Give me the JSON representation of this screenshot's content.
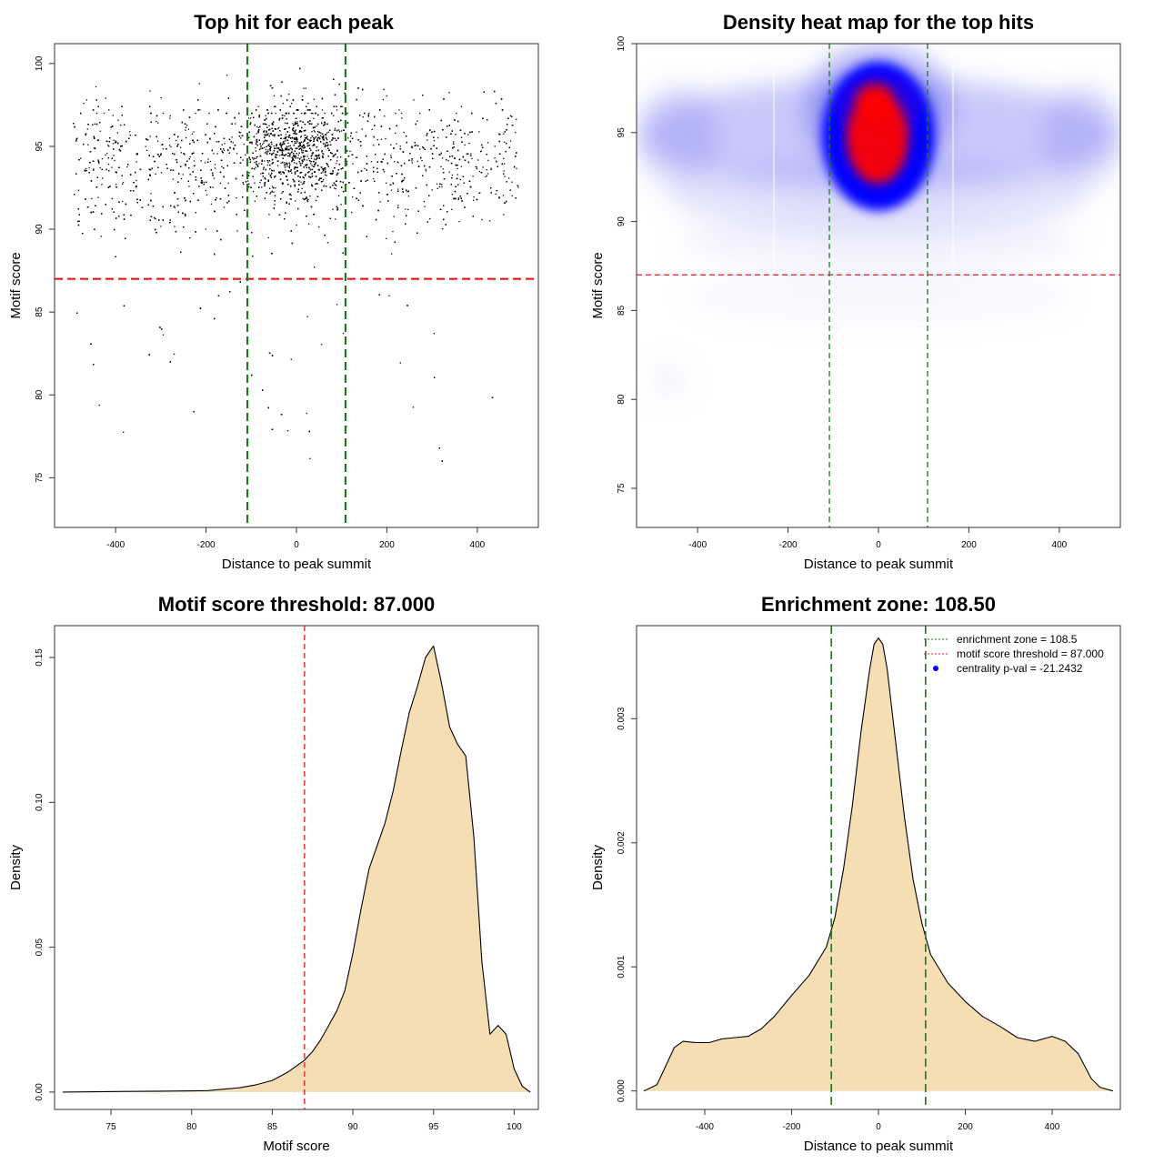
{
  "chart_data": [
    {
      "type": "scatter",
      "title": "Top hit for each peak",
      "xlabel": "Distance to peak summit",
      "ylabel": "Motif score",
      "xlim": [
        -535,
        535
      ],
      "ylim": [
        72,
        101.2
      ],
      "xticks": [
        "-400",
        "-200",
        "0",
        "200",
        "400"
      ],
      "yticks": [
        "75",
        "80",
        "85",
        "90",
        "95",
        "100"
      ],
      "threshold_line": {
        "axis": "y",
        "value": 87.0,
        "color": "#e41a1c",
        "style": "dashed"
      },
      "zone_lines": {
        "axis": "x",
        "values": [
          -108.5,
          108.5
        ],
        "color": "#1a7a1a",
        "style": "dashed"
      },
      "point_color": "#000000",
      "points_description": "approx. 10000 peaks; x roughly uniform in [-500, 500] with concentration near 0; y mostly between 87 and 100, mode near 95",
      "grid": false
    },
    {
      "type": "heatmap",
      "title": "Density heat map for the top hits",
      "xlabel": "Distance to peak summit",
      "ylabel": "Motif score",
      "xlim": [
        -535,
        535
      ],
      "ylim": [
        72.8,
        100
      ],
      "xticks": [
        "-400",
        "-200",
        "0",
        "200",
        "400"
      ],
      "yticks": [
        "75",
        "80",
        "85",
        "90",
        "95",
        "100"
      ],
      "color_scale": [
        "#ffffff",
        "#0000ff",
        "#ff0000"
      ],
      "density_peak": {
        "x": 0,
        "y": 95
      },
      "threshold_line": {
        "axis": "y",
        "value": 87.0,
        "color": "#e41a1c",
        "style": "dashed"
      },
      "zone_lines": {
        "axis": "x",
        "values": [
          -108.5,
          108.5
        ],
        "color": "#1a7a1a",
        "style": "dashed"
      },
      "grid": false
    },
    {
      "type": "area",
      "title": "Motif score threshold: 87.000",
      "xlabel": "Motif score",
      "ylabel": "Density",
      "xlim": [
        71.5,
        101.5
      ],
      "ylim": [
        -0.006,
        0.161
      ],
      "xticks": [
        "75",
        "80",
        "85",
        "90",
        "95",
        "100"
      ],
      "yticks": [
        "0.00",
        "0.05",
        "0.10",
        "0.15"
      ],
      "fill": "#f5deb3",
      "x": [
        72,
        74,
        76,
        78,
        80,
        81,
        82,
        83,
        84,
        85,
        86,
        86.5,
        87,
        87.5,
        88,
        88.5,
        89,
        89.5,
        90,
        90.5,
        91,
        91.5,
        92,
        92.5,
        93,
        93.5,
        94,
        94.5,
        95,
        95.5,
        96,
        96.5,
        97,
        97.5,
        98,
        98.5,
        99,
        99.5,
        100,
        100.5,
        101
      ],
      "y": [
        0.0,
        0.0001,
        0.0002,
        0.0003,
        0.0004,
        0.0005,
        0.001,
        0.0015,
        0.0025,
        0.004,
        0.007,
        0.009,
        0.011,
        0.014,
        0.018,
        0.023,
        0.028,
        0.035,
        0.048,
        0.063,
        0.077,
        0.085,
        0.093,
        0.104,
        0.118,
        0.131,
        0.14,
        0.15,
        0.154,
        0.141,
        0.126,
        0.12,
        0.116,
        0.088,
        0.045,
        0.02,
        0.023,
        0.02,
        0.008,
        0.002,
        0.0
      ],
      "threshold_line": {
        "axis": "x",
        "value": 87.0,
        "color": "#e41a1c",
        "style": "dashed"
      },
      "grid": false
    },
    {
      "type": "area",
      "title": "Enrichment zone: 108.50",
      "xlabel": "Distance to peak summit",
      "ylabel": "Density",
      "xlim": [
        -557,
        557
      ],
      "ylim": [
        -0.000149,
        0.00375
      ],
      "xticks": [
        "-400",
        "-200",
        "0",
        "200",
        "400"
      ],
      "yticks": [
        "0.000",
        "0.001",
        "0.002",
        "0.003"
      ],
      "fill": "#f5deb3",
      "x": [
        -540,
        -510,
        -490,
        -470,
        -450,
        -420,
        -390,
        -360,
        -330,
        -300,
        -270,
        -240,
        -200,
        -160,
        -120,
        -100,
        -80,
        -60,
        -40,
        -20,
        -10,
        0,
        10,
        20,
        40,
        60,
        80,
        100,
        120,
        160,
        200,
        240,
        280,
        320,
        360,
        400,
        430,
        460,
        490,
        510,
        540
      ],
      "y": [
        0.0,
        5e-05,
        0.0002,
        0.00035,
        0.0004,
        0.00039,
        0.00039,
        0.00042,
        0.00043,
        0.00044,
        0.0005,
        0.0006,
        0.00077,
        0.00093,
        0.00116,
        0.0014,
        0.0018,
        0.0023,
        0.0029,
        0.0034,
        0.0036,
        0.00365,
        0.0036,
        0.0034,
        0.0028,
        0.0022,
        0.0017,
        0.00135,
        0.0011,
        0.00087,
        0.00072,
        0.0006,
        0.00052,
        0.00043,
        0.0004,
        0.00044,
        0.0004,
        0.0003,
        0.0001,
        3e-05,
        0.0
      ],
      "zone_lines": {
        "axis": "x",
        "values": [
          -108.5,
          108.5
        ],
        "color": "#1a7a1a",
        "style": "dashed"
      },
      "legend": {
        "placement": "top-right",
        "entries": [
          {
            "label": "enrichment zone = 108.5",
            "color": "#1a7a1a",
            "marker": "dotted-line"
          },
          {
            "label": "motif score threshold = 87.000",
            "color": "#e41a1c",
            "marker": "dotted-line"
          },
          {
            "label": "centrality p-val = -21.2432",
            "color": "#0000ff",
            "marker": "dot"
          }
        ]
      },
      "grid": false
    }
  ]
}
